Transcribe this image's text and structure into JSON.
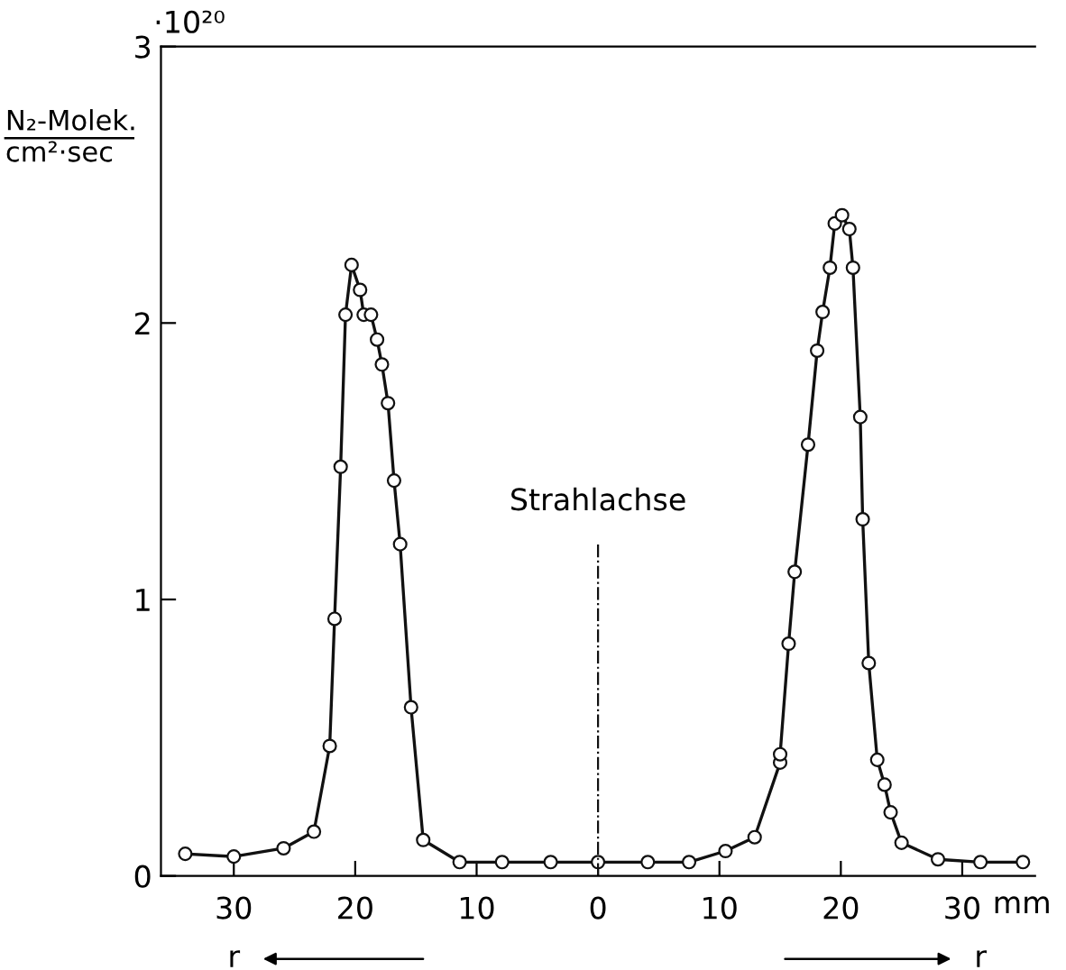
{
  "chart_data": {
    "type": "line",
    "ylabel": "N₂-Molek.\ncm²·sec",
    "xlabel": "mm",
    "x": [
      -34.0,
      -30.0,
      -25.9,
      -23.4,
      -22.1,
      -21.7,
      -21.2,
      -20.8,
      -20.3,
      -19.6,
      -19.3,
      -18.7,
      -18.2,
      -17.8,
      -17.3,
      -16.8,
      -16.3,
      -15.4,
      -14.4,
      -11.4,
      -7.9,
      -3.9,
      0,
      4.1,
      7.5,
      10.5,
      12.9,
      15.0,
      15.0,
      15.7,
      16.2,
      17.3,
      18.05,
      18.5,
      19.1,
      19.5,
      20.1,
      20.7,
      21.0,
      21.6,
      21.8,
      22.3,
      23.0,
      23.6,
      24.1,
      25.0,
      28.0,
      31.5,
      35.0
    ],
    "series": [
      {
        "color": "#111111",
        "values": [
          0.08,
          0.07,
          0.1,
          0.16,
          0.47,
          0.93,
          1.48,
          2.03,
          2.21,
          2.12,
          2.03,
          2.03,
          1.94,
          1.85,
          1.71,
          1.43,
          1.2,
          0.61,
          0.13,
          0.05,
          0.05,
          0.05,
          0.05,
          0.05,
          0.05,
          0.09,
          0.14,
          0.41,
          0.44,
          0.84,
          1.1,
          1.56,
          1.9,
          2.04,
          2.2,
          2.36,
          2.39,
          2.34,
          2.2,
          1.66,
          1.29,
          0.77,
          0.42,
          0.33,
          0.23,
          0.12,
          0.06,
          0.05,
          0.05
        ]
      }
    ],
    "marker": "circle",
    "line_style": "solid",
    "grid": false,
    "legend": false,
    "xlim": [
      -36,
      36
    ],
    "xticks": [
      {
        "value": -30,
        "label": "30"
      },
      {
        "value": -20,
        "label": "20"
      },
      {
        "value": -10,
        "label": "10"
      },
      0,
      10,
      20,
      30
    ],
    "ylim": [
      0,
      3
    ],
    "yticks": [
      0,
      1,
      2,
      3
    ],
    "ref_lines": [
      {
        "axis": "x",
        "value": 0,
        "label": "Strahlachse",
        "line_style": "dashdot",
        "color": "#111111"
      }
    ],
    "annotations": [
      "r",
      "r",
      "·10²⁰"
    ]
  }
}
